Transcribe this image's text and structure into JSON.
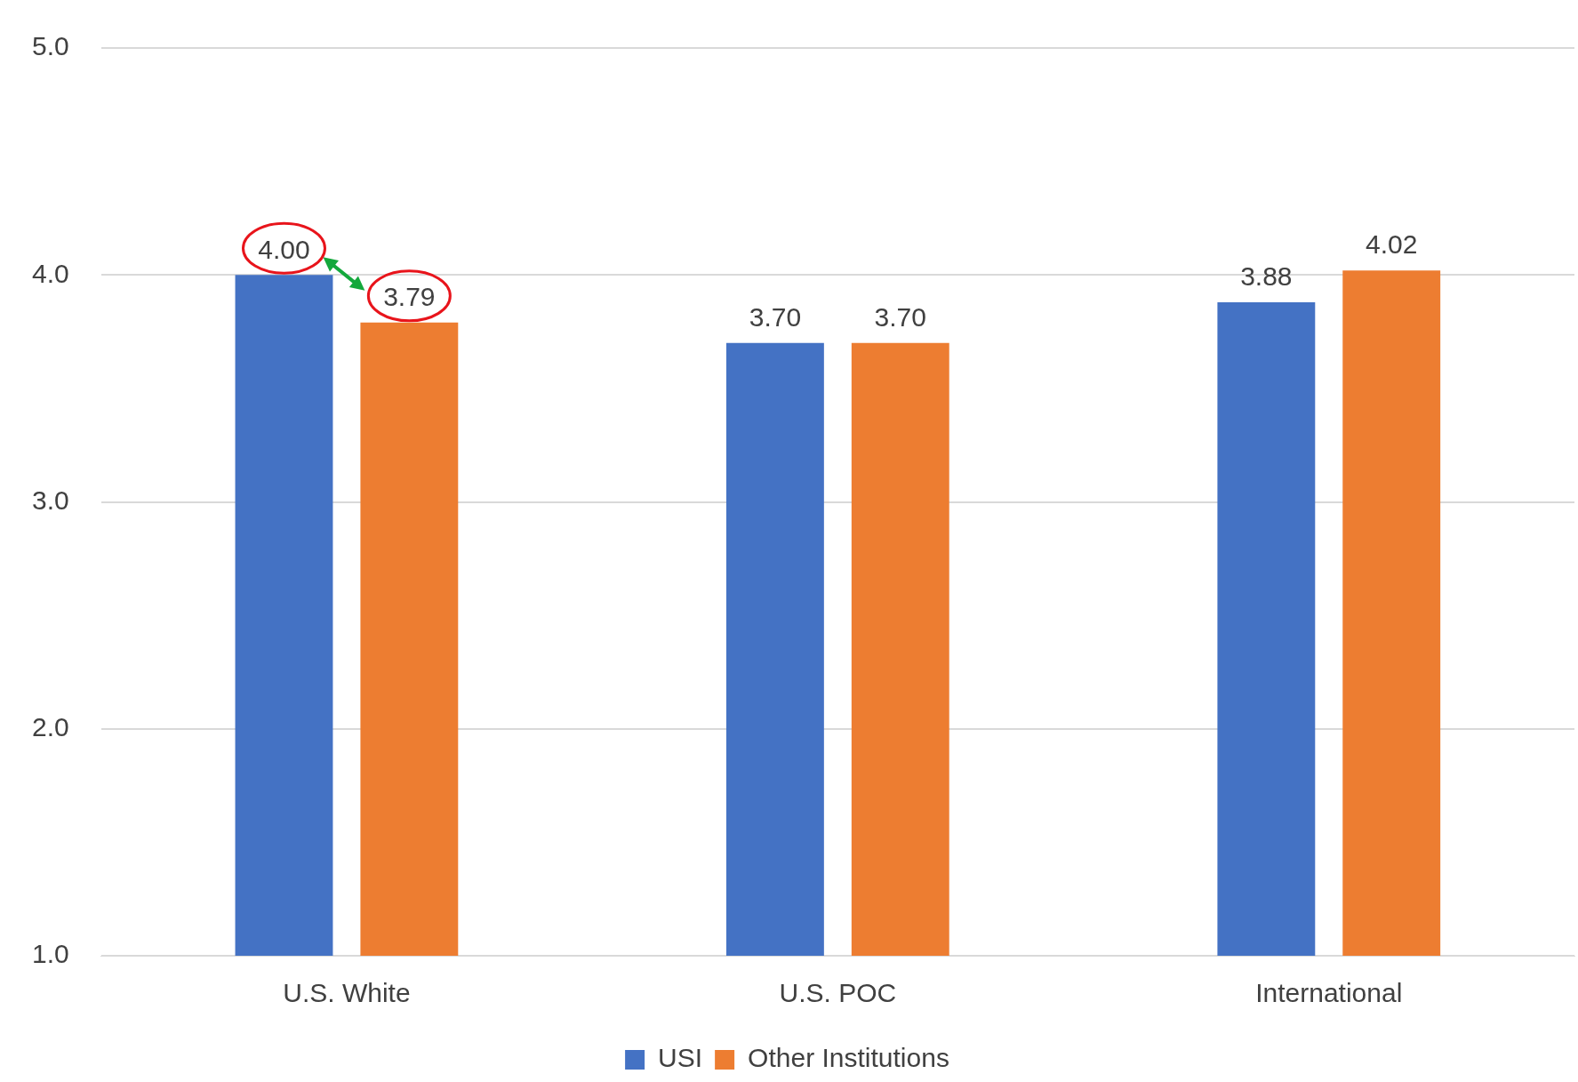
{
  "chart_data": {
    "type": "bar",
    "categories": [
      "U.S. White",
      "U.S. POC",
      "International"
    ],
    "series": [
      {
        "name": "USI",
        "color": "#4472c4",
        "values": [
          4.0,
          3.7,
          3.88
        ],
        "value_labels": [
          "4.00",
          "3.70",
          "3.88"
        ]
      },
      {
        "name": "Other Institutions",
        "color": "#ed7d31",
        "values": [
          3.79,
          3.7,
          4.02
        ],
        "value_labels": [
          "3.79",
          "3.70",
          "4.02"
        ]
      }
    ],
    "ylim": [
      1,
      5
    ],
    "yticks": [
      {
        "value": 1,
        "label": "1.0"
      },
      {
        "value": 2,
        "label": "2.0"
      },
      {
        "value": 3,
        "label": "3.0"
      },
      {
        "value": 4,
        "label": "4.0"
      },
      {
        "value": 5,
        "label": "5.0"
      }
    ],
    "grid": "y",
    "legend": "bottom"
  }
}
